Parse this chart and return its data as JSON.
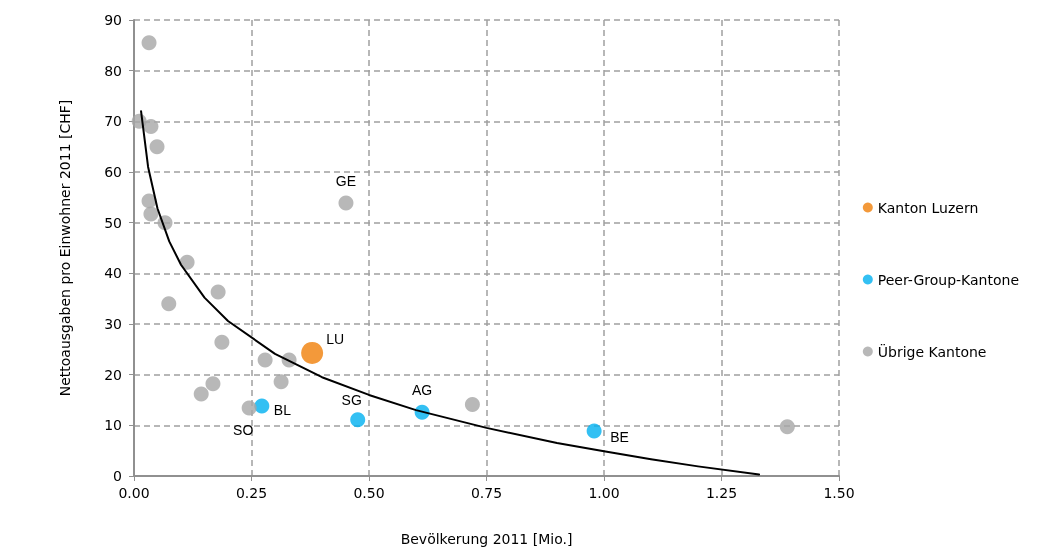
{
  "chart_data": {
    "type": "scatter",
    "xlabel": "Bevölkerung 2011 [Mio.]",
    "ylabel": "Nettoausgaben pro Einwohner 2011 [CHF]",
    "xlim": [
      0,
      1.5
    ],
    "xticks": [
      {
        "value": 0,
        "label": "0.00"
      },
      {
        "value": 0.25,
        "label": "0.25"
      },
      {
        "value": 0.5,
        "label": "0.50"
      },
      {
        "value": 0.75,
        "label": "0.75"
      },
      {
        "value": 1,
        "label": "1.00"
      },
      {
        "value": 1.25,
        "label": "1.25"
      },
      {
        "value": 1.5,
        "label": "1.50"
      }
    ],
    "ylim": [
      0,
      90
    ],
    "yticks": [
      0,
      10,
      20,
      30,
      40,
      50,
      60,
      70,
      80,
      90
    ],
    "grid": true,
    "legend": "right",
    "marker": "circle",
    "series": [
      {
        "name": "Kanton Luzern",
        "color": "#f07f09",
        "x": [
          0.379
        ],
        "values": [
          24.3
        ]
      },
      {
        "name": "Peer-Group-Kantone",
        "color": "#00b0f0",
        "x": [
          0.272,
          0.476,
          0.613,
          0.979
        ],
        "values": [
          13.8,
          11.1,
          12.6,
          8.9
        ]
      },
      {
        "name": "Übrige Kantone",
        "color": "#a6a6a6",
        "x": [
          0.032,
          0.011,
          0.036,
          0.049,
          0.032,
          0.036,
          0.066,
          0.113,
          0.074,
          0.179,
          0.187,
          0.279,
          0.33,
          0.313,
          0.168,
          0.143,
          0.245,
          0.451,
          0.72,
          1.39
        ],
        "values": [
          85.5,
          70,
          69,
          65,
          54.3,
          51.7,
          50,
          42.2,
          34,
          36.3,
          26.4,
          22.9,
          22.9,
          18.6,
          18.2,
          16.2,
          13.4,
          53.9,
          14.1,
          9.7
        ]
      },
      {
        "type": "line",
        "color": "#000000",
        "marker": "none",
        "x": [
          0.015,
          0.03,
          0.05,
          0.075,
          0.1,
          0.15,
          0.2,
          0.3,
          0.4,
          0.5,
          0.6,
          0.75,
          0.9,
          1.0,
          1.1,
          1.2,
          1.33
        ],
        "values": [
          72,
          61,
          52.8,
          46.3,
          41.7,
          35.2,
          30.6,
          24.1,
          19.5,
          16.0,
          13.0,
          9.5,
          6.5,
          4.9,
          3.3,
          1.9,
          0.3
        ]
      }
    ],
    "annotations": [
      {
        "text": "GE",
        "x": 0.451,
        "y": 53.9
      },
      {
        "text": "LU",
        "x": 0.379,
        "y": 24.3
      },
      {
        "text": "SO",
        "x": 0.245,
        "y": 13.4
      },
      {
        "text": "BL",
        "x": 0.272,
        "y": 13.8
      },
      {
        "text": "SG",
        "x": 0.476,
        "y": 11.1
      },
      {
        "text": "AG",
        "x": 0.613,
        "y": 12.6
      },
      {
        "text": "BE",
        "x": 0.979,
        "y": 8.9
      }
    ]
  }
}
